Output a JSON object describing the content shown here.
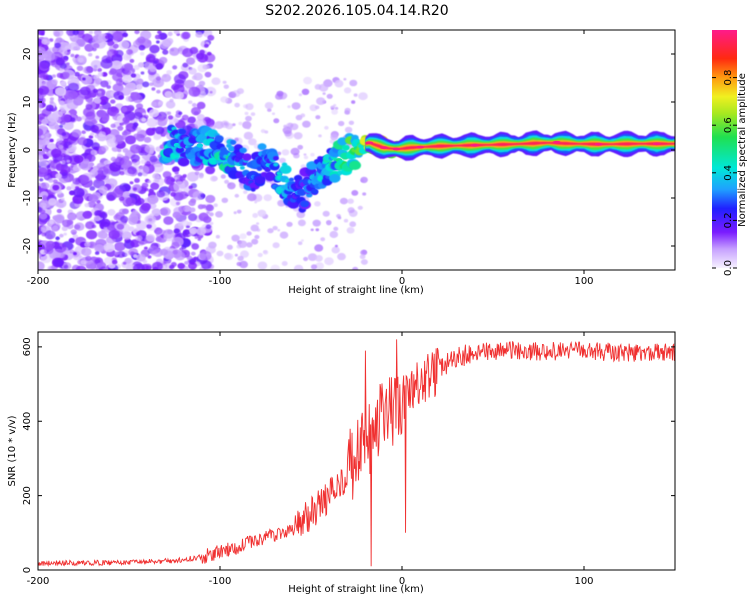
{
  "title": "S202.2026.105.04.14.R20",
  "chart_data": [
    {
      "type": "heatmap",
      "xlabel": "Height of straight line (km)",
      "ylabel": "Frequency (Hz)",
      "xlim": [
        -200,
        150
      ],
      "ylim": [
        -25,
        25
      ],
      "xticks": [
        -200,
        -100,
        0,
        100
      ],
      "yticks": [
        -20,
        -10,
        0,
        10,
        20
      ],
      "ridge": [
        {
          "x": -127,
          "f": 1.5,
          "a": 0.4
        },
        {
          "x": -120,
          "f": 0.5,
          "a": 0.3
        },
        {
          "x": -110,
          "f": 1.0,
          "a": 0.35
        },
        {
          "x": -103,
          "f": 0.0,
          "a": 0.4
        },
        {
          "x": -95,
          "f": -1.0,
          "a": 0.45
        },
        {
          "x": -90,
          "f": -2.5,
          "a": 0.35
        },
        {
          "x": -85,
          "f": -4.0,
          "a": 0.3
        },
        {
          "x": -82,
          "f": -6.0,
          "a": 0.25
        },
        {
          "x": -76,
          "f": -2.0,
          "a": 0.3
        },
        {
          "x": -70,
          "f": -4.5,
          "a": 0.35
        },
        {
          "x": -65,
          "f": -6.5,
          "a": 0.4
        },
        {
          "x": -60,
          "f": -8.0,
          "a": 0.3
        },
        {
          "x": -55,
          "f": -9.5,
          "a": 0.25
        },
        {
          "x": -50,
          "f": -6.0,
          "a": 0.3
        },
        {
          "x": -46,
          "f": -5.0,
          "a": 0.35
        },
        {
          "x": -42,
          "f": -3.5,
          "a": 0.4
        },
        {
          "x": -36,
          "f": -2.5,
          "a": 0.45
        },
        {
          "x": -30,
          "f": -1.0,
          "a": 0.5
        },
        {
          "x": -26,
          "f": 0.0,
          "a": 0.55
        },
        {
          "x": -22,
          "f": 1.0,
          "a": 0.6
        },
        {
          "x": -18,
          "f": 1.5,
          "a": 0.7
        },
        {
          "x": -14,
          "f": 1.0,
          "a": 0.75
        },
        {
          "x": -10,
          "f": 0.5,
          "a": 0.8
        },
        {
          "x": -6,
          "f": 0.3,
          "a": 0.85
        },
        {
          "x": -2,
          "f": 0.2,
          "a": 0.9
        },
        {
          "x": 5,
          "f": 0.5,
          "a": 0.95
        },
        {
          "x": 20,
          "f": 0.8,
          "a": 0.98
        },
        {
          "x": 40,
          "f": 1.0,
          "a": 0.97
        },
        {
          "x": 60,
          "f": 1.2,
          "a": 0.96
        },
        {
          "x": 80,
          "f": 1.5,
          "a": 0.98
        },
        {
          "x": 95,
          "f": 1.3,
          "a": 0.95
        },
        {
          "x": 110,
          "f": 1.2,
          "a": 0.97
        },
        {
          "x": 130,
          "f": 1.3,
          "a": 0.96
        },
        {
          "x": 150,
          "f": 1.3,
          "a": 0.95
        }
      ]
    },
    {
      "type": "line",
      "xlabel": "Height of straight line (km)",
      "ylabel": "SNR (10 * v/v)",
      "xlim": [
        -200,
        150
      ],
      "ylim": [
        0,
        640
      ],
      "xticks": [
        -200,
        -100,
        0,
        100
      ],
      "yticks": [
        0,
        200,
        400,
        600
      ],
      "color": "#f03030",
      "envelope": {
        "x": [
          -200,
          -150,
          -125,
          -110,
          -95,
          -80,
          -60,
          -50,
          -40,
          -30,
          -20,
          -10,
          0,
          10,
          20,
          30,
          40,
          60,
          80,
          100,
          120,
          150
        ],
        "y": [
          18,
          20,
          25,
          35,
          55,
          80,
          110,
          150,
          200,
          260,
          330,
          400,
          450,
          500,
          540,
          570,
          585,
          590,
          588,
          590,
          585,
          585
        ]
      },
      "spikes": [
        {
          "x": -30,
          "y": 300
        },
        {
          "x": -20,
          "y": 590
        },
        {
          "x": -17,
          "y": 10
        },
        {
          "x": -12,
          "y": 500
        },
        {
          "x": -3,
          "y": 620
        },
        {
          "x": 2,
          "y": 100
        }
      ]
    }
  ],
  "colorbar": {
    "label": "Normalized spectral amplitude",
    "ticks": [
      0.0,
      0.2,
      0.4,
      0.6,
      0.8
    ]
  }
}
